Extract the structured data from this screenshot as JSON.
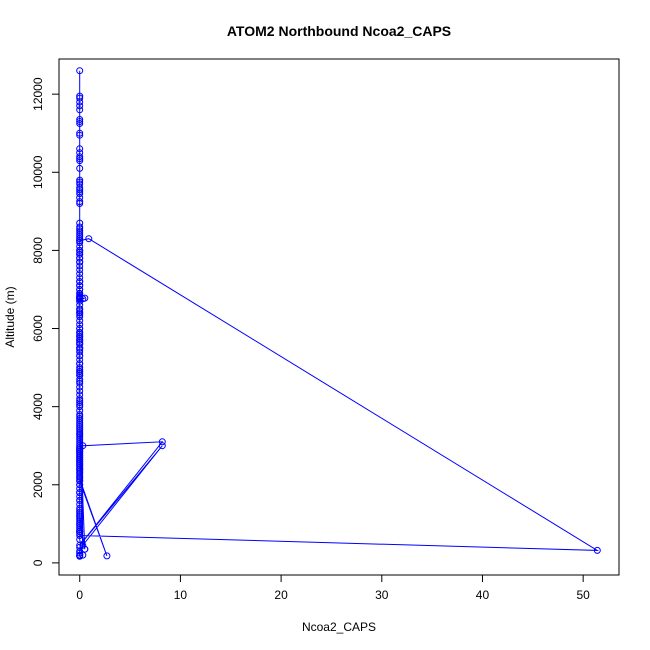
{
  "chart_data": {
    "type": "scatter",
    "title": "ATOM2 Northbound Ncoa2_CAPS",
    "xlabel": "Ncoa2_CAPS",
    "ylabel": "Altitude (m)",
    "xlim": [
      -2.06,
      53.56
    ],
    "ylim": [
      -310,
      12900
    ],
    "xticks": [
      0,
      10,
      20,
      30,
      40,
      50
    ],
    "yticks": [
      0,
      2000,
      4000,
      6000,
      8000,
      10000,
      12000
    ],
    "grid": false,
    "legend": "none",
    "series_color": "#0000ff",
    "series": [
      {
        "style": "line-and-points",
        "x": [
          0.0,
          0.0,
          0.0,
          0.0,
          0.0,
          0.0,
          0.0,
          0.0,
          0.0,
          0.0,
          0.0,
          0.0,
          0.0,
          0.0,
          0.0,
          0.0,
          0.0,
          0.0,
          0.0,
          0.0,
          0.0,
          0.0,
          0.0,
          0.0,
          0.0,
          0.0,
          0.0,
          0.0,
          0.0,
          0.0,
          0.0,
          0.0,
          0.0,
          0.0,
          0.0,
          0.0,
          0.0,
          0.0,
          0.0,
          0.0,
          0.0,
          0.0,
          0.0,
          0.0,
          0.0,
          0.0,
          0.0,
          0.0,
          0.0,
          0.0,
          0.0,
          0.5,
          0.3,
          0.0,
          0.0,
          0.0,
          0.0,
          0.0,
          0.0,
          0.0,
          0.0,
          0.0,
          0.0,
          0.0,
          0.0,
          0.0,
          0.0,
          0.0,
          0.0,
          0.0,
          0.0,
          0.0,
          0.0,
          0.0,
          0.0,
          0.0,
          0.0,
          0.0,
          0.0,
          0.0,
          0.0,
          0.0,
          0.0,
          0.0,
          0.0,
          0.0,
          0.0,
          0.0,
          0.0,
          0.0,
          0.5,
          0.0,
          0.0,
          0.0,
          0.0,
          0.0,
          0.0,
          0.0,
          0.0,
          0.0,
          0.0,
          0.0,
          0.0,
          0.0,
          0.0,
          0.0,
          0.0,
          0.0,
          0.0,
          0.0,
          0.0,
          0.0,
          0.0,
          0.0,
          0.0,
          0.0,
          0.0,
          0.0,
          0.0,
          0.0,
          0.0,
          0.0,
          0.0,
          0.0,
          0.0,
          0.0,
          0.0,
          0.0,
          0.0,
          0.0,
          0.0,
          0.0,
          0.0,
          0.0,
          0.0,
          0.0,
          0.0,
          0.0,
          0.0,
          51.4,
          0.9,
          0.0,
          0.0,
          0.0,
          0.0,
          0.0,
          0.0,
          0.0,
          0.0,
          0.0,
          0.0,
          0.0,
          0.0,
          0.0,
          0.0,
          0.0,
          0.0,
          0.0,
          0.0,
          0.0,
          0.0,
          0.0,
          0.0,
          0.0,
          0.0,
          0.0,
          0.0,
          0.0,
          0.0,
          0.0,
          0.0,
          0.0,
          0.0,
          0.0,
          0.0,
          0.0,
          0.0,
          0.0,
          0.3,
          8.2,
          0.0,
          8.2,
          0.3,
          0.0,
          0.0,
          0.0,
          0.0,
          0.0,
          0.0,
          0.0,
          0.0,
          0.0,
          0.0,
          0.0,
          0.0,
          0.0,
          0.0,
          0.0,
          0.0,
          0.0,
          2.7,
          0.0,
          0.0,
          0.0,
          0.0,
          0.0,
          0.5,
          0.0,
          0.0,
          0.0,
          0.3,
          0.0,
          0.0,
          0.0,
          0.0,
          0.0,
          0.0
        ],
        "y": [
          12600,
          11950,
          11900,
          11800,
          11700,
          11600,
          11350,
          11300,
          11250,
          11000,
          10950,
          10600,
          10500,
          10400,
          10350,
          10300,
          10100,
          9800,
          9750,
          9700,
          9600,
          9550,
          9500,
          9450,
          9350,
          9250,
          9200,
          8700,
          8600,
          8550,
          8500,
          8450,
          8400,
          8350,
          8300,
          8250,
          8000,
          7950,
          7900,
          7800,
          7700,
          7200,
          7100,
          7000,
          6900,
          6850,
          6820,
          6800,
          6780,
          6760,
          6750,
          6780,
          6760,
          6700,
          6500,
          6450,
          6400,
          6350,
          6000,
          5900,
          5850,
          5800,
          5750,
          5700,
          5650,
          5600,
          5500,
          5450,
          5300,
          5100,
          4950,
          4900,
          4850,
          4800,
          4700,
          4650,
          4600,
          4500,
          4400,
          4300,
          4200,
          4150,
          4100,
          4050,
          4000,
          3900,
          3800,
          3750,
          3700,
          3650,
          350,
          3600,
          3550,
          3500,
          3450,
          3400,
          3350,
          3300,
          3250,
          3200,
          3150,
          3100,
          3050,
          3000,
          2950,
          2900,
          2850,
          2800,
          2750,
          2700,
          2650,
          2600,
          2550,
          2500,
          2400,
          2300,
          2200,
          2100,
          2000,
          1900,
          1800,
          1700,
          1600,
          1500,
          1400,
          1350,
          1300,
          1250,
          1200,
          1150,
          1100,
          1050,
          1000,
          950,
          900,
          850,
          800,
          750,
          700,
          320,
          8300,
          8250,
          8200,
          8100,
          8000,
          7900,
          7800,
          7700,
          7600,
          7500,
          7400,
          7300,
          7200,
          7100,
          7000,
          6900,
          6800,
          6700,
          6600,
          6500,
          6400,
          6300,
          6200,
          6100,
          6000,
          5900,
          5800,
          5700,
          5600,
          5500,
          5400,
          5300,
          5200,
          5100,
          5000,
          4900,
          4800,
          3300,
          450,
          3000,
          450,
          3100,
          3000,
          2950,
          2900,
          2850,
          2800,
          2750,
          2700,
          2650,
          2600,
          2550,
          2500,
          2450,
          2400,
          2350,
          2300,
          2250,
          2200,
          2150,
          180,
          2100,
          2000,
          1800,
          1600,
          1200,
          350,
          1000,
          800,
          600,
          200,
          400,
          300,
          250,
          200,
          180,
          170
        ]
      }
    ]
  }
}
